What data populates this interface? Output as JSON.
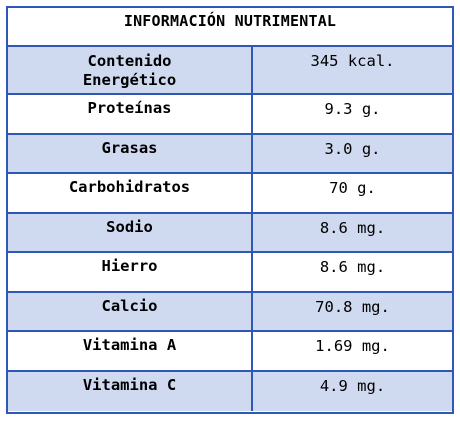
{
  "title": "INFORMACIÓN NUTRIMENTAL",
  "rows": [
    {
      "label": "Contenido\nEnergético",
      "value": "345 kcal."
    },
    {
      "label": "Proteínas",
      "value": "9.3 g."
    },
    {
      "label": "Grasas",
      "value": "3.0 g."
    },
    {
      "label": "Carbohidratos",
      "value": "70 g."
    },
    {
      "label": "Sodio",
      "value": "8.6 mg."
    },
    {
      "label": "Hierro",
      "value": "8.6 mg."
    },
    {
      "label": "Calcio",
      "value": "70.8 mg."
    },
    {
      "label": "Vitamina A",
      "value": "1.69 mg."
    },
    {
      "label": "Vitamina C",
      "value": "4.9 mg."
    }
  ],
  "colors": {
    "border": "#2f57b5",
    "shade": "#cfdaf0"
  }
}
